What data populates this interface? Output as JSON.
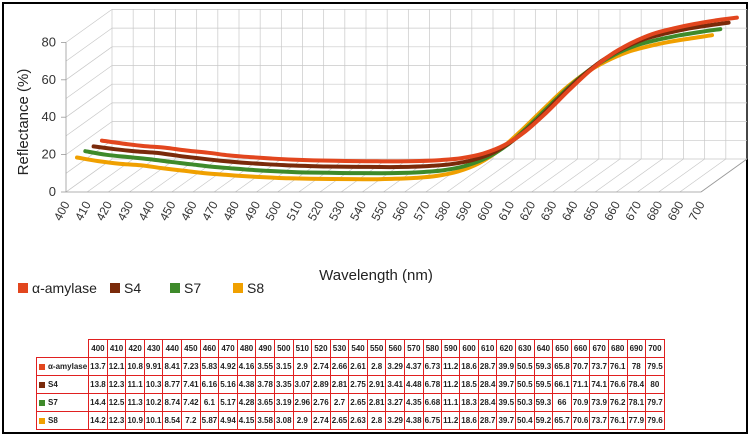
{
  "chart_data": {
    "type": "line",
    "ylabel": "Reflectance (%)",
    "xlabel": "Wavelength (nm)",
    "ylim": [
      0,
      80
    ],
    "yticks": [
      "0",
      "20",
      "40",
      "60",
      "80"
    ],
    "legend_position": "bottom-left",
    "grid": true,
    "x": [
      "400",
      "410",
      "420",
      "430",
      "440",
      "450",
      "460",
      "470",
      "480",
      "490",
      "500",
      "510",
      "520",
      "530",
      "540",
      "550",
      "560",
      "570",
      "580",
      "590",
      "600",
      "610",
      "620",
      "630",
      "640",
      "650",
      "660",
      "670",
      "680",
      "690",
      "700"
    ],
    "series": [
      {
        "name": "α-amylase",
        "color": "#E2461E",
        "values": [
          13.7,
          12.1,
          10.8,
          9.91,
          8.41,
          7.23,
          5.83,
          4.92,
          4.16,
          3.55,
          3.15,
          2.9,
          2.74,
          2.66,
          2.61,
          2.8,
          3.29,
          4.37,
          6.73,
          11.2,
          18.6,
          28.7,
          39.9,
          50.5,
          59.3,
          65.8,
          70.7,
          73.7,
          76.1,
          78,
          79.5
        ]
      },
      {
        "name": "S4",
        "color": "#7A2A0A",
        "values": [
          13.8,
          12.3,
          11.1,
          10.3,
          8.77,
          7.41,
          6.16,
          5.16,
          4.38,
          3.78,
          3.35,
          3.07,
          2.89,
          2.81,
          2.75,
          2.91,
          3.41,
          4.48,
          6.78,
          11.2,
          18.5,
          28.4,
          39.7,
          50.5,
          59.5,
          66.1,
          71.1,
          74.1,
          76.6,
          78.4,
          80
        ]
      },
      {
        "name": "S7",
        "color": "#3E8A2A",
        "values": [
          14.4,
          12.5,
          11.3,
          10.2,
          8.74,
          7.42,
          6.1,
          5.17,
          4.28,
          3.65,
          3.19,
          2.96,
          2.76,
          2.7,
          2.65,
          2.81,
          3.27,
          4.35,
          6.68,
          11.1,
          18.3,
          28.4,
          39.5,
          50.3,
          59.3,
          66,
          70.9,
          73.9,
          76.2,
          78.1,
          79.7
        ]
      },
      {
        "name": "S8",
        "color": "#F0A000",
        "values": [
          14.2,
          12.3,
          10.9,
          10.1,
          8.54,
          7.2,
          5.87,
          4.94,
          4.15,
          3.58,
          3.08,
          2.9,
          2.74,
          2.65,
          2.63,
          2.8,
          3.29,
          4.38,
          6.75,
          11.2,
          18.6,
          28.7,
          39.7,
          50.4,
          59.2,
          65.7,
          70.6,
          73.7,
          76.1,
          77.9,
          79.6
        ]
      }
    ],
    "table": {
      "header": [
        "400",
        "410",
        "420",
        "430",
        "440",
        "450",
        "460",
        "470",
        "480",
        "490",
        "500",
        "510",
        "520",
        "530",
        "540",
        "550",
        "560",
        "570",
        "580",
        "590",
        "600",
        "610",
        "620",
        "630",
        "640",
        "650",
        "660",
        "670",
        "680",
        "690",
        "700"
      ],
      "rows": [
        {
          "name": "α-amylase",
          "color": "#E2461E",
          "cells": [
            "13.7",
            "12.1",
            "10.8",
            "9.91",
            "8.41",
            "7.23",
            "5.83",
            "4.92",
            "4.16",
            "3.55",
            "3.15",
            "2.9",
            "2.74",
            "2.66",
            "2.61",
            "2.8",
            "3.29",
            "4.37",
            "6.73",
            "11.2",
            "18.6",
            "28.7",
            "39.9",
            "50.5",
            "59.3",
            "65.8",
            "70.7",
            "73.7",
            "76.1",
            "78",
            "79.5"
          ]
        },
        {
          "name": "S4",
          "color": "#7A2A0A",
          "cells": [
            "13.8",
            "12.3",
            "11.1",
            "10.3",
            "8.77",
            "7.41",
            "6.16",
            "5.16",
            "4.38",
            "3.78",
            "3.35",
            "3.07",
            "2.89",
            "2.81",
            "2.75",
            "2.91",
            "3.41",
            "4.48",
            "6.78",
            "11.2",
            "18.5",
            "28.4",
            "39.7",
            "50.5",
            "59.5",
            "66.1",
            "71.1",
            "74.1",
            "76.6",
            "78.4",
            "80"
          ]
        },
        {
          "name": "S7",
          "color": "#3E8A2A",
          "cells": [
            "14.4",
            "12.5",
            "11.3",
            "10.2",
            "8.74",
            "7.42",
            "6.1",
            "5.17",
            "4.28",
            "3.65",
            "3.19",
            "2.96",
            "2.76",
            "2.7",
            "2.65",
            "2.81",
            "3.27",
            "4.35",
            "6.68",
            "11.1",
            "18.3",
            "28.4",
            "39.5",
            "50.3",
            "59.3",
            "66",
            "70.9",
            "73.9",
            "76.2",
            "78.1",
            "79.7"
          ]
        },
        {
          "name": "S8",
          "color": "#F0A000",
          "cells": [
            "14.2",
            "12.3",
            "10.9",
            "10.1",
            "8.54",
            "7.2",
            "5.87",
            "4.94",
            "4.15",
            "3.58",
            "3.08",
            "2.9",
            "2.74",
            "2.65",
            "2.63",
            "2.8",
            "3.29",
            "4.38",
            "6.75",
            "11.2",
            "18.6",
            "28.7",
            "39.7",
            "50.4",
            "59.2",
            "65.7",
            "70.6",
            "73.7",
            "76.1",
            "77.9",
            "79.6"
          ]
        }
      ]
    }
  }
}
